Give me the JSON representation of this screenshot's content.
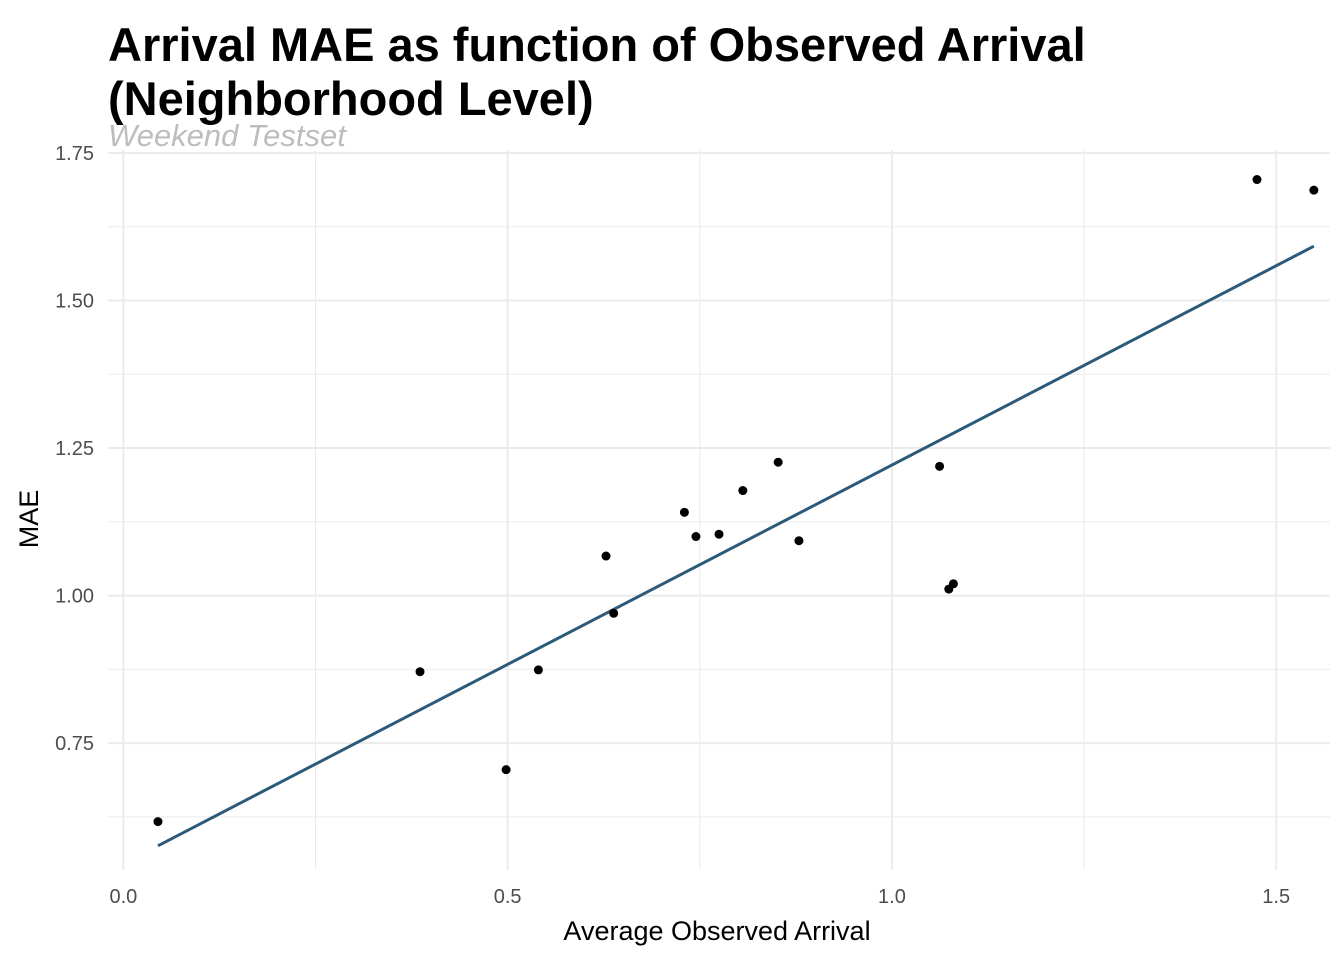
{
  "chart_data": {
    "type": "scatter",
    "title": "Arrival MAE as function of Observed Arrival (Neighborhood Level)",
    "subtitle": "Weekend Testset",
    "xlabel": "Average Observed Arrival",
    "ylabel": "MAE",
    "xlim": [
      -0.02,
      1.57
    ],
    "ylim": [
      0.535,
      1.755
    ],
    "x_ticks": [
      0.0,
      0.5,
      1.0,
      1.5
    ],
    "x_tick_labels": [
      "0.0",
      "0.5",
      "1.0",
      "1.5"
    ],
    "y_ticks": [
      0.75,
      1.0,
      1.25,
      1.5,
      1.75
    ],
    "y_tick_labels": [
      "0.75",
      "1.00",
      "1.25",
      "1.50",
      "1.75"
    ],
    "grid": true,
    "points": [
      {
        "x": 0.045,
        "y": 0.617
      },
      {
        "x": 0.386,
        "y": 0.871
      },
      {
        "x": 0.498,
        "y": 0.705
      },
      {
        "x": 0.54,
        "y": 0.874
      },
      {
        "x": 0.628,
        "y": 1.067
      },
      {
        "x": 0.638,
        "y": 0.97
      },
      {
        "x": 0.73,
        "y": 1.141
      },
      {
        "x": 0.745,
        "y": 1.1
      },
      {
        "x": 0.775,
        "y": 1.104
      },
      {
        "x": 0.806,
        "y": 1.178
      },
      {
        "x": 0.852,
        "y": 1.226
      },
      {
        "x": 0.879,
        "y": 1.093
      },
      {
        "x": 1.062,
        "y": 1.219
      },
      {
        "x": 1.074,
        "y": 1.011
      },
      {
        "x": 1.08,
        "y": 1.02
      },
      {
        "x": 1.475,
        "y": 1.705
      },
      {
        "x": 1.549,
        "y": 1.687
      }
    ],
    "fit_line": {
      "x": [
        0.045,
        1.549
      ],
      "y": [
        0.576,
        1.592
      ]
    },
    "colors": {
      "points": "#000000",
      "fit_line": "#2e5a7a",
      "grid": "#ebebeb"
    }
  }
}
